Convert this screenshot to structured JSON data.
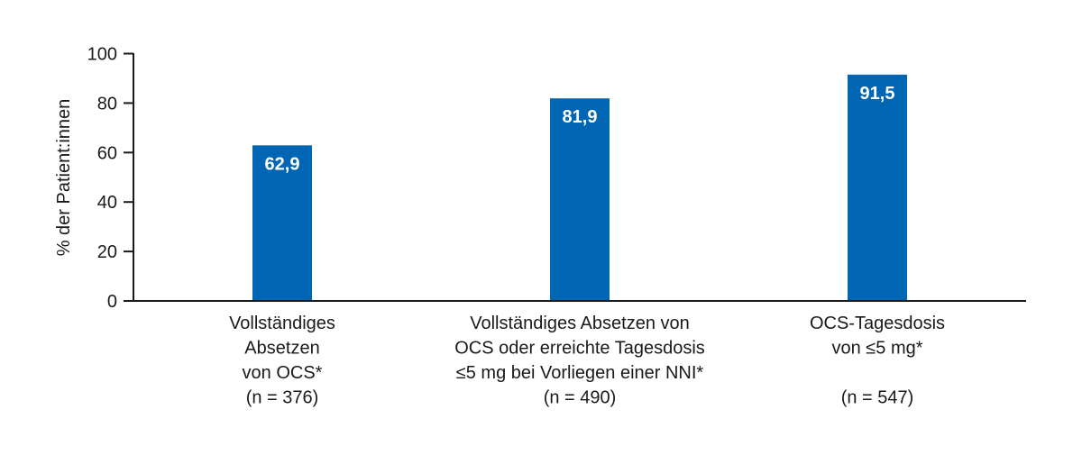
{
  "chart_data": {
    "type": "bar",
    "title": "",
    "xlabel": "",
    "ylabel": "% der Patient:innen",
    "ylim": [
      0,
      100
    ],
    "yticks": [
      0,
      20,
      40,
      60,
      80,
      100
    ],
    "grid": false,
    "bar_color": "#0066b3",
    "categories": [
      [
        "Vollständiges",
        "Absetzen",
        "von OCS*",
        "(n = 376)"
      ],
      [
        "Vollständiges Absetzen von",
        "OCS oder erreichte Tagesdosis",
        "≤5 mg bei Vorliegen einer NNI*",
        "(n = 490)"
      ],
      [
        "OCS-Tagesdosis",
        "von ≤5 mg*",
        "",
        "(n = 547)"
      ]
    ],
    "values": [
      62.9,
      81.9,
      91.5
    ],
    "value_labels": [
      "62,9",
      "81,9",
      "91,5"
    ]
  }
}
